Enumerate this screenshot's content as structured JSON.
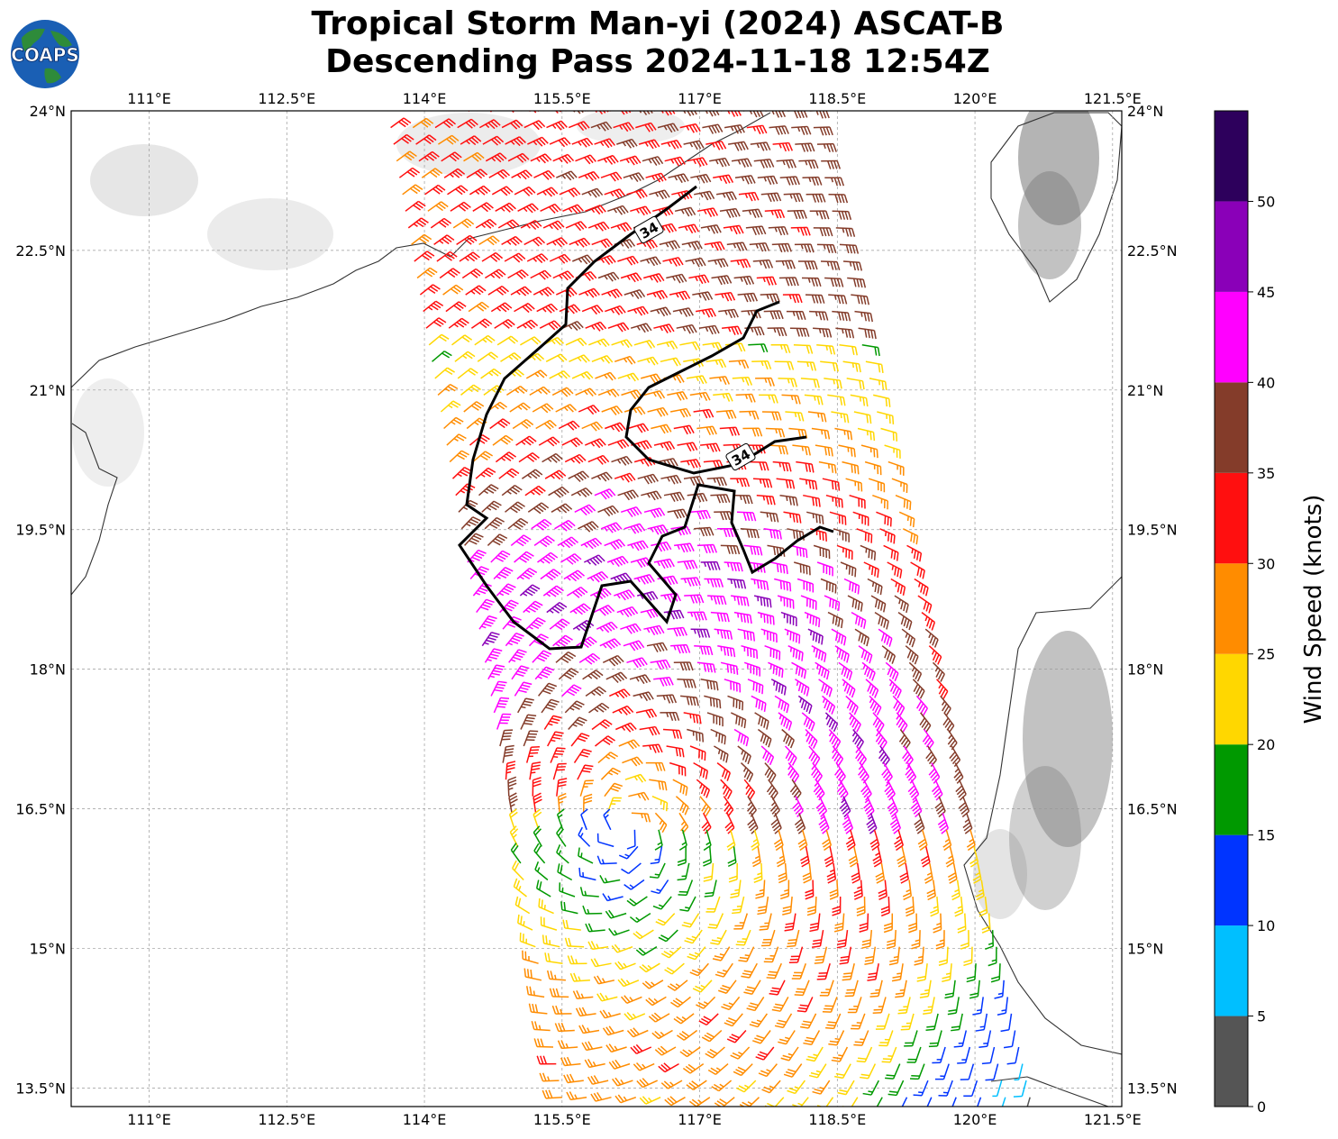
{
  "title": {
    "line1": "Tropical Storm Man-yi (2024) ASCAT-B",
    "line2": "Descending Pass 2024-11-18 12:54Z"
  },
  "logo": {
    "text": "COAPS",
    "icon": "globe-icon",
    "colors": {
      "ocean": "#1a5fb4",
      "land": "#2e8b3a",
      "text": "#ffffff"
    }
  },
  "map": {
    "lon_ticks": [
      "111°E",
      "112.5°E",
      "114°E",
      "115.5°E",
      "117°E",
      "118.5°E",
      "120°E",
      "121.5°E"
    ],
    "lat_ticks": [
      "24°N",
      "22.5°N",
      "21°N",
      "19.5°N",
      "18°N",
      "16.5°N",
      "15°N",
      "13.5°N"
    ],
    "lon_range": [
      110.15,
      121.6
    ],
    "lat_range": [
      13.3,
      24.0
    ],
    "contour_label": "34",
    "grid": true
  },
  "colorbar": {
    "label": "Wind Speed (knots)",
    "ticks": [
      "0",
      "5",
      "10",
      "15",
      "20",
      "25",
      "30",
      "35",
      "40",
      "45",
      "50"
    ],
    "bins": [
      {
        "from": 0,
        "to": 5,
        "color": "#555555"
      },
      {
        "from": 5,
        "to": 10,
        "color": "#00bfff"
      },
      {
        "from": 10,
        "to": 15,
        "color": "#0034ff"
      },
      {
        "from": 15,
        "to": 20,
        "color": "#009900"
      },
      {
        "from": 20,
        "to": 25,
        "color": "#ffd700"
      },
      {
        "from": 25,
        "to": 30,
        "color": "#ff8c00"
      },
      {
        "from": 30,
        "to": 35,
        "color": "#ff0f0f"
      },
      {
        "from": 35,
        "to": 40,
        "color": "#843c2a"
      },
      {
        "from": 40,
        "to": 45,
        "color": "#ff00ff"
      },
      {
        "from": 45,
        "to": 50,
        "color": "#8a00b8"
      },
      {
        "from": 50,
        "to": 55,
        "color": "#2d005c"
      }
    ]
  },
  "storm_center": {
    "lon": 116.2,
    "lat": 16.3
  }
}
